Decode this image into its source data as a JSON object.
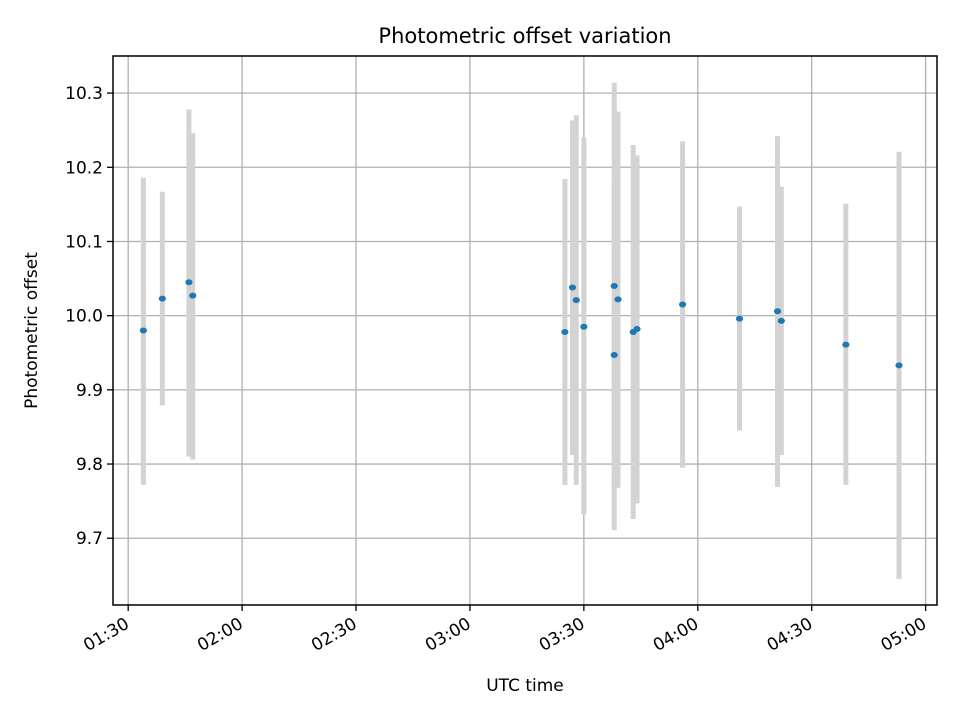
{
  "chart_data": {
    "type": "scatter",
    "title": "Photometric offset variation",
    "xlabel": "UTC time",
    "ylabel": "Photometric offset",
    "x_ticks": [
      "01:30",
      "02:00",
      "02:30",
      "03:00",
      "03:30",
      "04:00",
      "04:30",
      "05:00"
    ],
    "y_ticks": [
      "9.7",
      "9.8",
      "9.9",
      "10.0",
      "10.1",
      "10.2",
      "10.3"
    ],
    "xlim": [
      "01:26",
      "05:03"
    ],
    "ylim": [
      9.61,
      10.35
    ],
    "grid": true,
    "x_tick_rotation": "30 degrees",
    "colors": {
      "point": "#1f77b4",
      "errorbar": "#d3d3d3",
      "grid": "#b0b0b0"
    },
    "series": [
      {
        "points": [
          {
            "x": "01:34",
            "y": 9.98,
            "ylow": 9.772,
            "yhigh": 10.186
          },
          {
            "x": "01:39",
            "y": 10.023,
            "ylow": 9.879,
            "yhigh": 10.167
          },
          {
            "x": "01:46",
            "y": 10.045,
            "ylow": 9.81,
            "yhigh": 10.278
          },
          {
            "x": "01:47",
            "y": 10.027,
            "ylow": 9.806,
            "yhigh": 10.246
          },
          {
            "x": "03:25",
            "y": 9.978,
            "ylow": 9.772,
            "yhigh": 10.184
          },
          {
            "x": "03:27",
            "y": 10.038,
            "ylow": 9.812,
            "yhigh": 10.263
          },
          {
            "x": "03:28",
            "y": 10.021,
            "ylow": 9.772,
            "yhigh": 10.27
          },
          {
            "x": "03:30",
            "y": 9.985,
            "ylow": 9.732,
            "yhigh": 10.24
          },
          {
            "x": "03:38",
            "y": 9.947,
            "ylow": 9.711,
            "yhigh": 10.182
          },
          {
            "x": "03:38",
            "y": 10.04,
            "ylow": 9.767,
            "yhigh": 10.314
          },
          {
            "x": "03:39",
            "y": 10.022,
            "ylow": 9.768,
            "yhigh": 10.275
          },
          {
            "x": "03:43",
            "y": 9.978,
            "ylow": 9.726,
            "yhigh": 10.23
          },
          {
            "x": "03:44",
            "y": 9.982,
            "ylow": 9.747,
            "yhigh": 10.216
          },
          {
            "x": "03:56",
            "y": 10.015,
            "ylow": 9.795,
            "yhigh": 10.235
          },
          {
            "x": "04:11",
            "y": 9.996,
            "ylow": 9.845,
            "yhigh": 10.147
          },
          {
            "x": "04:21",
            "y": 10.006,
            "ylow": 9.769,
            "yhigh": 10.242
          },
          {
            "x": "04:22",
            "y": 9.993,
            "ylow": 9.812,
            "yhigh": 10.174
          },
          {
            "x": "04:39",
            "y": 9.961,
            "ylow": 9.772,
            "yhigh": 10.151
          },
          {
            "x": "04:53",
            "y": 9.933,
            "ylow": 9.645,
            "yhigh": 10.221
          }
        ]
      }
    ]
  }
}
